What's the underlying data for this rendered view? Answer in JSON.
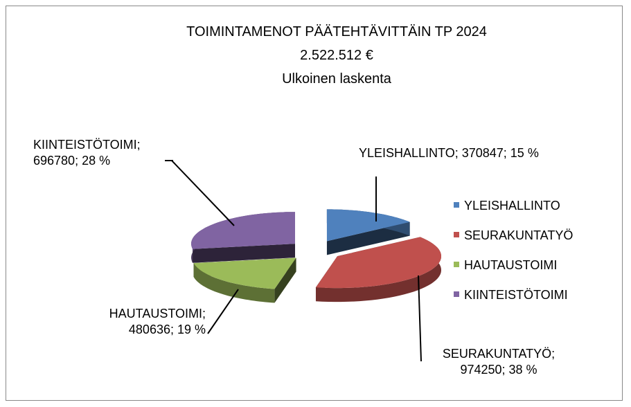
{
  "chart_data": {
    "type": "pie",
    "title": "TOIMINTAMENOT PÄÄTEHTÄVITTÄIN TP 2024",
    "subtitle": [
      "2.522.512 €",
      "Ulkoinen laskenta"
    ],
    "categories": [
      "YLEISHALLINTO",
      "SEURAKUNTATYÖ",
      "HAUTAUSTOIMI",
      "KIINTEISTÖTOIMI"
    ],
    "values": [
      370847,
      974250,
      480636,
      696780
    ],
    "value_labels": [
      "YLEISHALLINTO; 370847; 15 %",
      "SEURAKUNTATYÖ;\n974250; 38 %",
      "HAUTAUSTOIMI;\n480636; 19 %",
      "KIINTEISTÖTOIMI;\n696780; 28 %"
    ],
    "colors": [
      "#4f81bd",
      "#c0504d",
      "#9bbb59",
      "#8064a2"
    ],
    "legend": "right",
    "exploded": true,
    "three_d": true
  }
}
